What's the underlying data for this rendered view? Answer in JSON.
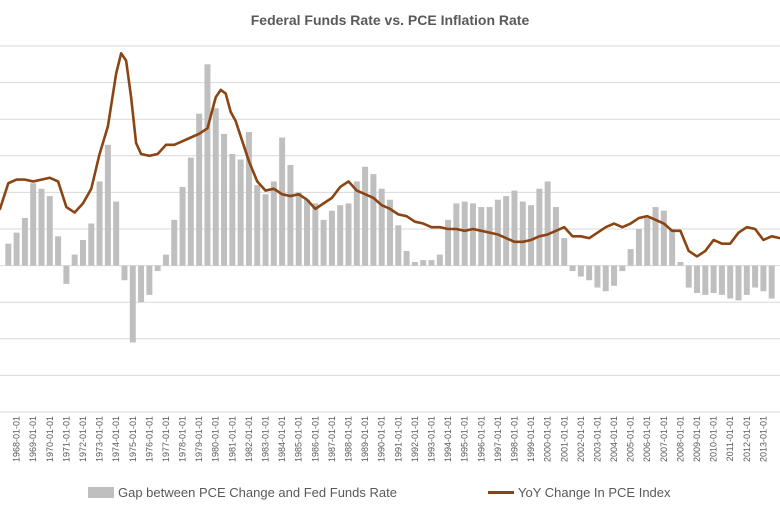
{
  "chart_data": {
    "type": "bar",
    "title": "Federal Funds Rate vs. PCE Inflation Rate",
    "x_tick_labels": [
      "1968-01-01",
      "1969-01-01",
      "1970-01-01",
      "1971-01-01",
      "1972-01-01",
      "1973-01-01",
      "1974-01-01",
      "1975-01-01",
      "1976-01-01",
      "1977-01-01",
      "1978-01-01",
      "1979-01-01",
      "1980-01-01",
      "1981-01-01",
      "1982-01-01",
      "1983-01-01",
      "1984-01-01",
      "1985-01-01",
      "1986-01-01",
      "1987-01-01",
      "1988-01-01",
      "1989-01-01",
      "1990-01-01",
      "1991-01-01",
      "1992-01-01",
      "1993-01-01",
      "1994-01-01",
      "1995-01-01",
      "1996-01-01",
      "1997-01-01",
      "1998-01-01",
      "1999-01-01",
      "2000-01-01",
      "2001-01-01",
      "2002-01-01",
      "2003-01-01",
      "2004-01-01",
      "2005-01-01",
      "2006-01-01",
      "2007-01-01",
      "2008-01-01",
      "2009-01-01",
      "2010-01-01",
      "2011-01-01",
      "2012-01-01",
      "2013-01-01"
    ],
    "y_axis": {
      "min": -8,
      "max": 12,
      "gridline_step": 2,
      "tick_labels_visible": false
    },
    "grid": true,
    "legend_position": "bottom",
    "series": [
      {
        "name": "Gap between PCE Change and Fed Funds Rate",
        "type": "bar",
        "color": "#bfbfbf",
        "x": [
          1967.5,
          1968.0,
          1968.5,
          1969.0,
          1969.5,
          1970.0,
          1970.5,
          1971.0,
          1971.5,
          1972.0,
          1972.5,
          1973.0,
          1973.5,
          1974.0,
          1974.5,
          1975.0,
          1975.5,
          1976.0,
          1976.5,
          1977.0,
          1977.5,
          1978.0,
          1978.5,
          1979.0,
          1979.5,
          1980.0,
          1980.5,
          1981.0,
          1981.5,
          1982.0,
          1982.5,
          1983.0,
          1983.5,
          1984.0,
          1984.5,
          1985.0,
          1985.5,
          1986.0,
          1986.5,
          1987.0,
          1987.5,
          1988.0,
          1988.5,
          1989.0,
          1989.5,
          1990.0,
          1990.5,
          1991.0,
          1991.5,
          1992.0,
          1992.5,
          1993.0,
          1993.5,
          1994.0,
          1994.5,
          1995.0,
          1995.5,
          1996.0,
          1996.5,
          1997.0,
          1997.5,
          1998.0,
          1998.5,
          1999.0,
          1999.5,
          2000.0,
          2000.5,
          2001.0,
          2001.5,
          2002.0,
          2002.5,
          2003.0,
          2003.5,
          2004.0,
          2004.5,
          2005.0,
          2005.5,
          2006.0,
          2006.5,
          2007.0,
          2007.5,
          2008.0,
          2008.5,
          2009.0,
          2009.5,
          2010.0,
          2010.5,
          2011.0,
          2011.5,
          2012.0,
          2012.5,
          2013.0,
          2013.5
        ],
        "values": [
          1.2,
          1.8,
          2.6,
          4.5,
          4.2,
          3.8,
          1.6,
          -1.0,
          0.6,
          1.4,
          2.3,
          4.6,
          6.6,
          3.5,
          -0.8,
          -4.2,
          -2.0,
          -1.6,
          -0.3,
          0.6,
          2.5,
          4.3,
          5.9,
          8.3,
          11.0,
          8.6,
          7.2,
          6.1,
          5.8,
          7.3,
          4.4,
          3.9,
          4.6,
          7.0,
          5.5,
          4.0,
          3.6,
          3.4,
          2.5,
          3.0,
          3.3,
          3.4,
          4.6,
          5.4,
          5.0,
          4.2,
          3.6,
          2.2,
          0.8,
          0.2,
          0.3,
          0.3,
          0.6,
          2.5,
          3.4,
          3.5,
          3.4,
          3.2,
          3.2,
          3.6,
          3.8,
          4.1,
          3.5,
          3.3,
          4.2,
          4.6,
          3.2,
          1.5,
          -0.3,
          -0.6,
          -0.8,
          -1.2,
          -1.4,
          -1.1,
          -0.3,
          0.9,
          2.0,
          2.6,
          3.2,
          3.0,
          2.0,
          0.2,
          -1.2,
          -1.5,
          -1.6,
          -1.5,
          -1.6,
          -1.8,
          -1.9,
          -1.6,
          -1.2,
          -1.4,
          -1.8
        ]
      },
      {
        "name": "YoY Change In PCE Index",
        "type": "line",
        "color": "#8b4513",
        "x": [
          1967.0,
          1967.5,
          1968.0,
          1968.5,
          1969.0,
          1969.5,
          1970.0,
          1970.5,
          1971.0,
          1971.5,
          1972.0,
          1972.5,
          1973.0,
          1973.5,
          1974.0,
          1974.3,
          1974.6,
          1974.9,
          1975.2,
          1975.5,
          1976.0,
          1976.5,
          1977.0,
          1977.5,
          1978.0,
          1978.5,
          1979.0,
          1979.5,
          1980.0,
          1980.3,
          1980.6,
          1980.9,
          1981.2,
          1981.6,
          1982.0,
          1982.5,
          1983.0,
          1983.5,
          1984.0,
          1984.5,
          1985.0,
          1985.5,
          1986.0,
          1986.5,
          1987.0,
          1987.5,
          1988.0,
          1988.5,
          1989.0,
          1989.5,
          1990.0,
          1990.5,
          1991.0,
          1991.5,
          1992.0,
          1992.5,
          1993.0,
          1993.5,
          1994.0,
          1994.5,
          1995.0,
          1995.5,
          1996.0,
          1996.5,
          1997.0,
          1997.5,
          1998.0,
          1998.5,
          1999.0,
          1999.5,
          2000.0,
          2000.5,
          2001.0,
          2001.5,
          2002.0,
          2002.5,
          2003.0,
          2003.5,
          2004.0,
          2004.5,
          2005.0,
          2005.5,
          2006.0,
          2006.5,
          2007.0,
          2007.5,
          2008.0,
          2008.5,
          2009.0,
          2009.5,
          2010.0,
          2010.5,
          2011.0,
          2011.5,
          2012.0,
          2012.5,
          2013.0,
          2013.5,
          2014.0
        ],
        "values": [
          3.1,
          4.5,
          4.7,
          4.7,
          4.6,
          4.7,
          4.8,
          4.6,
          3.2,
          2.9,
          3.4,
          4.2,
          6.1,
          7.6,
          10.5,
          11.6,
          11.2,
          9.2,
          6.7,
          6.1,
          6.0,
          6.1,
          6.6,
          6.6,
          6.8,
          7.0,
          7.2,
          7.5,
          9.2,
          9.6,
          9.4,
          8.4,
          7.9,
          6.8,
          5.7,
          4.6,
          4.1,
          4.2,
          3.9,
          3.8,
          3.9,
          3.6,
          3.1,
          3.4,
          3.7,
          4.3,
          4.6,
          4.1,
          3.9,
          3.7,
          3.3,
          3.1,
          2.8,
          2.7,
          2.4,
          2.3,
          2.1,
          2.1,
          2.0,
          2.0,
          1.9,
          2.0,
          1.9,
          1.8,
          1.7,
          1.5,
          1.3,
          1.3,
          1.4,
          1.6,
          1.7,
          1.9,
          2.1,
          1.6,
          1.6,
          1.5,
          1.8,
          2.1,
          2.3,
          2.1,
          2.3,
          2.6,
          2.7,
          2.5,
          2.3,
          1.9,
          1.9,
          0.8,
          0.5,
          0.8,
          1.4,
          1.2,
          1.2,
          1.8,
          2.1,
          2.0,
          1.4,
          1.6,
          1.5
        ]
      }
    ]
  }
}
